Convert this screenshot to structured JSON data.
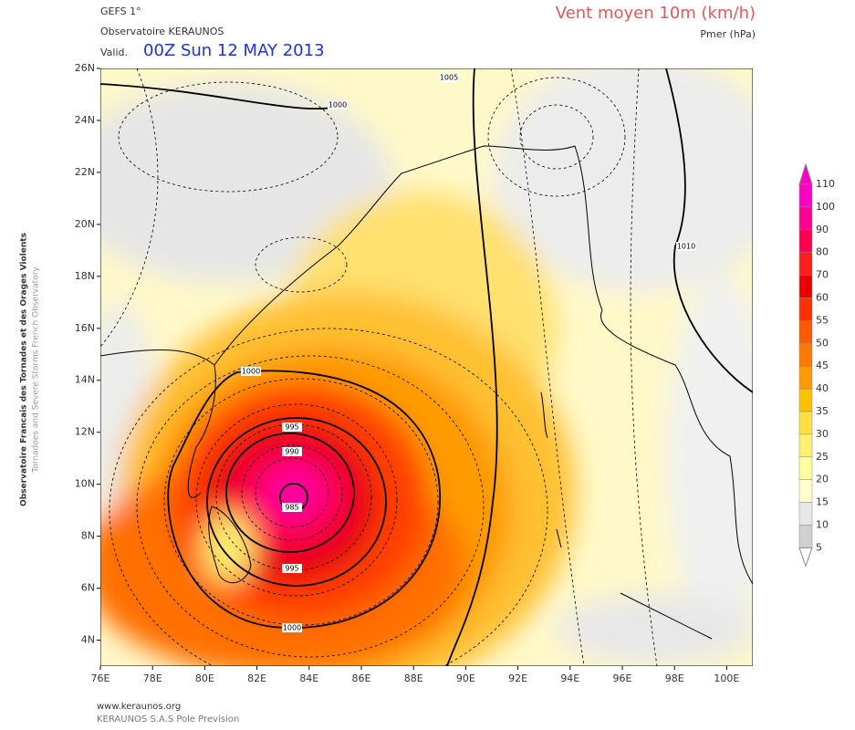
{
  "header": {
    "model": "GEFS 1°",
    "observatory": "Observatoire KERAUNOS",
    "valid_prefix": "Valid.",
    "valid_time": "00Z Sun 12 MAY 2013",
    "title": "Vent moyen 10m (km/h)",
    "subtitle": "Pmer (hPa)"
  },
  "axes": {
    "lat_labels": [
      "26N",
      "24N",
      "22N",
      "20N",
      "18N",
      "16N",
      "14N",
      "12N",
      "10N",
      "8N",
      "6N",
      "4N"
    ],
    "lon_labels": [
      "76E",
      "78E",
      "80E",
      "82E",
      "84E",
      "86E",
      "88E",
      "90E",
      "92E",
      "94E",
      "96E",
      "98E",
      "100E"
    ]
  },
  "colorbar": {
    "labels": [
      "110",
      "100",
      "90",
      "80",
      "70",
      "60",
      "55",
      "50",
      "45",
      "40",
      "35",
      "30",
      "25",
      "20",
      "15",
      "10",
      "5"
    ]
  },
  "contour_labels": [
    "1005",
    "1000",
    "1010",
    "1000",
    "995",
    "990",
    "985",
    "995",
    "1000"
  ],
  "side_text": [
    "Observatoire Francais des Tornades et des Orages Violents",
    "Tornadoes and Severe Storms French Observatory"
  ],
  "footer": [
    "www.keraunos.org",
    "KERAUNOS S.A.S Pole Prevision"
  ]
}
